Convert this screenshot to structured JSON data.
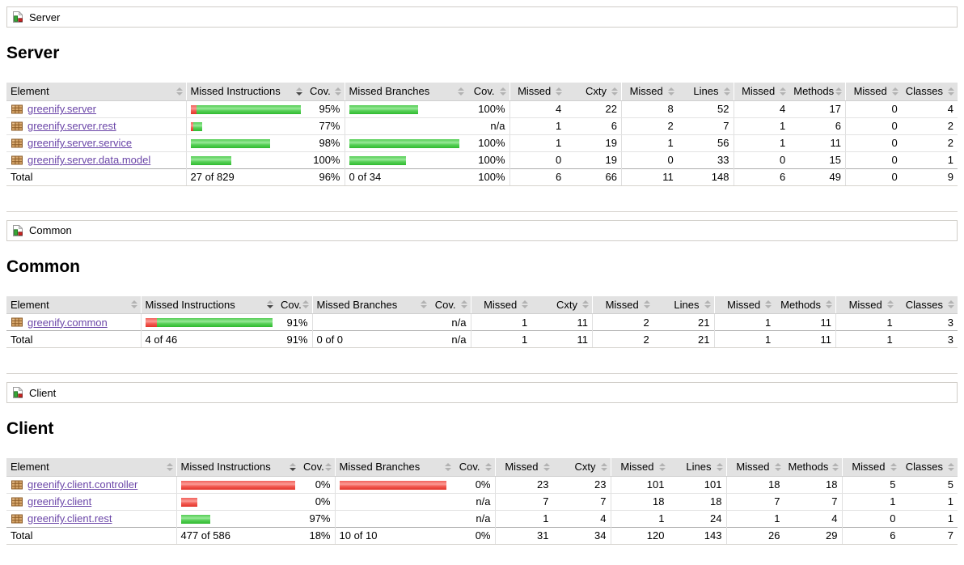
{
  "columns": [
    "Element",
    "Missed Instructions",
    "Cov.",
    "Missed Branches",
    "Cov.",
    "Missed",
    "Cxty",
    "Missed",
    "Lines",
    "Missed",
    "Methods",
    "Missed",
    "Classes"
  ],
  "sort": {
    "column_index": 1,
    "direction": "desc"
  },
  "icons": {
    "breadcrumb_icon": "coverage-group-icon",
    "package_icon": "java-package-icon",
    "sort_icon": "sort-arrows-icon"
  },
  "colors": {
    "link": "#6b46a8",
    "header_bg": "#e2e2e2",
    "bar_red": "#e2352b",
    "bar_green": "#30ba30",
    "border": "#d6d3ce"
  },
  "sections": [
    {
      "id": "server",
      "breadcrumb": "Server",
      "heading": "Server",
      "rows": [
        {
          "element": "greenify.server",
          "instr_bar": [
            7,
            129
          ],
          "instr_cov": "95%",
          "branch_bar": [
            0,
            85
          ],
          "branch_cov": "100%",
          "cells": [
            "4",
            "22",
            "8",
            "52",
            "4",
            "17",
            "0",
            "4"
          ]
        },
        {
          "element": "greenify.server.rest",
          "instr_bar": [
            3,
            11
          ],
          "instr_cov": "77%",
          "branch_bar": [
            0,
            0
          ],
          "branch_cov": "n/a",
          "cells": [
            "1",
            "6",
            "2",
            "7",
            "1",
            "6",
            "0",
            "2"
          ]
        },
        {
          "element": "greenify.server.service",
          "instr_bar": [
            0,
            98
          ],
          "instr_cov": "98%",
          "branch_bar": [
            0,
            136
          ],
          "branch_cov": "100%",
          "cells": [
            "1",
            "19",
            "1",
            "56",
            "1",
            "11",
            "0",
            "2"
          ]
        },
        {
          "element": "greenify.server.data.model",
          "instr_bar": [
            0,
            50
          ],
          "instr_cov": "100%",
          "branch_bar": [
            0,
            70
          ],
          "branch_cov": "100%",
          "cells": [
            "0",
            "19",
            "0",
            "33",
            "0",
            "15",
            "0",
            "1"
          ]
        }
      ],
      "total": {
        "label": "Total",
        "instr": "27 of 829",
        "instr_cov": "96%",
        "branch": "0 of 34",
        "branch_cov": "100%",
        "cells": [
          "6",
          "66",
          "11",
          "148",
          "6",
          "49",
          "0",
          "9"
        ]
      }
    },
    {
      "id": "common",
      "breadcrumb": "Common",
      "heading": "Common",
      "rows": [
        {
          "element": "greenify.common",
          "instr_bar": [
            15,
            143
          ],
          "instr_cov": "91%",
          "branch_bar": [
            0,
            0
          ],
          "branch_cov": "n/a",
          "cells": [
            "1",
            "11",
            "2",
            "21",
            "1",
            "11",
            "1",
            "3"
          ]
        }
      ],
      "total": {
        "label": "Total",
        "instr": "4 of 46",
        "instr_cov": "91%",
        "branch": "0 of 0",
        "branch_cov": "n/a",
        "cells": [
          "1",
          "11",
          "2",
          "21",
          "1",
          "11",
          "1",
          "3"
        ]
      }
    },
    {
      "id": "client",
      "breadcrumb": "Client",
      "heading": "Client",
      "rows": [
        {
          "element": "greenify.client.controller",
          "instr_bar": [
            143,
            0
          ],
          "instr_cov": "0%",
          "branch_bar": [
            132,
            0
          ],
          "branch_cov": "0%",
          "cells": [
            "23",
            "23",
            "101",
            "101",
            "18",
            "18",
            "5",
            "5"
          ]
        },
        {
          "element": "greenify.client",
          "instr_bar": [
            20,
            0
          ],
          "instr_cov": "0%",
          "branch_bar": [
            0,
            0
          ],
          "branch_cov": "n/a",
          "cells": [
            "7",
            "7",
            "18",
            "18",
            "7",
            "7",
            "1",
            "1"
          ]
        },
        {
          "element": "greenify.client.rest",
          "instr_bar": [
            0,
            36
          ],
          "instr_cov": "97%",
          "branch_bar": [
            0,
            0
          ],
          "branch_cov": "n/a",
          "cells": [
            "1",
            "4",
            "1",
            "24",
            "1",
            "4",
            "0",
            "1"
          ]
        }
      ],
      "total": {
        "label": "Total",
        "instr": "477 of 586",
        "instr_cov": "18%",
        "branch": "10 of 10",
        "branch_cov": "0%",
        "cells": [
          "31",
          "34",
          "120",
          "143",
          "26",
          "29",
          "6",
          "7"
        ]
      }
    }
  ]
}
